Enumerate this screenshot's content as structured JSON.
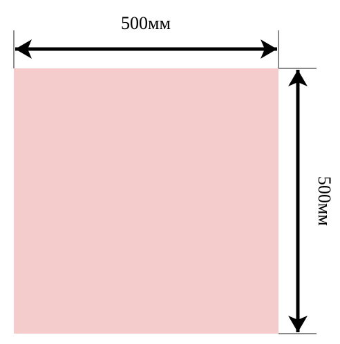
{
  "figure": {
    "width_label": "500мм",
    "height_label": "500мм"
  },
  "colors": {
    "panel_fill": "#f5cccc",
    "arrow": "#000000",
    "extension_line": "#8a8a8a"
  }
}
